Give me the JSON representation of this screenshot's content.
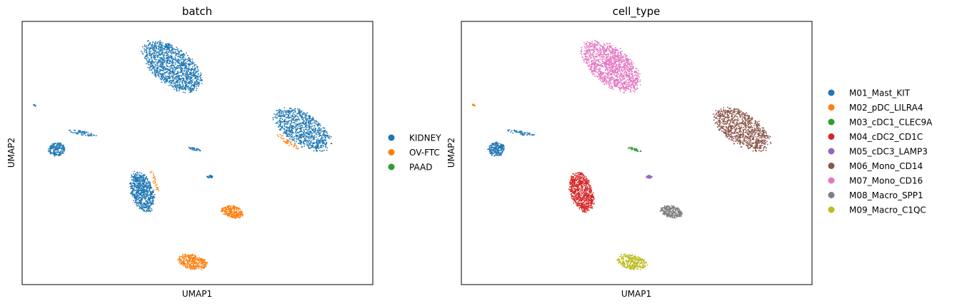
{
  "chart_data": [
    {
      "type": "scatter",
      "title": "batch",
      "xlabel": "UMAP1",
      "ylabel": "UMAP2",
      "grid": false,
      "ticks": false,
      "legend_position": "right",
      "series": [
        {
          "name": "KIDNEY",
          "color": "#1f77b4",
          "clusters": [
            {
              "cx": 3.0,
              "cy": 8.2,
              "rx": 1.4,
              "ry": 0.75,
              "angle": -38,
              "n": 1300
            },
            {
              "cx": 8.2,
              "cy": 5.7,
              "rx": 1.3,
              "ry": 0.65,
              "angle": -32,
              "n": 900
            },
            {
              "cx": 1.8,
              "cy": 3.2,
              "rx": 0.45,
              "ry": 0.85,
              "angle": 18,
              "n": 700
            },
            {
              "cx": -1.6,
              "cy": 4.9,
              "rx": 0.35,
              "ry": 0.28,
              "angle": 0,
              "n": 200
            },
            {
              "cx": -0.6,
              "cy": 5.55,
              "rx": 0.6,
              "ry": 0.09,
              "angle": -10,
              "n": 60
            },
            {
              "cx": 3.9,
              "cy": 4.9,
              "rx": 0.3,
              "ry": 0.05,
              "angle": -15,
              "n": 35
            },
            {
              "cx": 4.5,
              "cy": 3.8,
              "rx": 0.12,
              "ry": 0.06,
              "angle": 0,
              "n": 35
            },
            {
              "cx": -2.5,
              "cy": 6.65,
              "rx": 0.06,
              "ry": 0.03,
              "angle": -30,
              "n": 10
            }
          ]
        },
        {
          "name": "OV-FTC",
          "color": "#ff7f0e",
          "clusters": [
            {
              "cx": 5.4,
              "cy": 2.4,
              "rx": 0.45,
              "ry": 0.25,
              "angle": -10,
              "n": 260
            },
            {
              "cx": 3.8,
              "cy": 0.4,
              "rx": 0.62,
              "ry": 0.3,
              "angle": -12,
              "n": 320
            },
            {
              "cx": 7.6,
              "cy": 5.2,
              "rx": 0.55,
              "ry": 0.1,
              "angle": -35,
              "n": 45
            },
            {
              "cx": 2.3,
              "cy": 3.6,
              "rx": 0.08,
              "ry": 0.5,
              "angle": 20,
              "n": 25
            }
          ]
        },
        {
          "name": "PAAD",
          "color": "#2ca02c",
          "clusters": []
        }
      ],
      "xlim": [
        -3,
        11
      ],
      "ylim": [
        -0.5,
        10
      ]
    },
    {
      "type": "scatter",
      "title": "cell_type",
      "xlabel": "UMAP1",
      "ylabel": "UMAP2",
      "grid": false,
      "ticks": false,
      "legend_position": "right",
      "series": [
        {
          "name": "M01_Mast_KIT",
          "color": "#1f77b4",
          "clusters": [
            {
              "cx": -1.6,
              "cy": 4.9,
              "rx": 0.35,
              "ry": 0.28,
              "angle": 0,
              "n": 200
            },
            {
              "cx": -0.6,
              "cy": 5.55,
              "rx": 0.6,
              "ry": 0.09,
              "angle": -10,
              "n": 60
            }
          ]
        },
        {
          "name": "M02_pDC_LILRA4",
          "color": "#ff7f0e",
          "clusters": [
            {
              "cx": -2.5,
              "cy": 6.65,
              "rx": 0.06,
              "ry": 0.03,
              "angle": -30,
              "n": 12
            }
          ]
        },
        {
          "name": "M03_cDC1_CLEC9A",
          "color": "#2ca02c",
          "clusters": [
            {
              "cx": 3.9,
              "cy": 4.9,
              "rx": 0.3,
              "ry": 0.05,
              "angle": -15,
              "n": 35
            }
          ]
        },
        {
          "name": "M04_cDC2_CD1C",
          "color": "#d62728",
          "clusters": [
            {
              "cx": 1.8,
              "cy": 3.2,
              "rx": 0.45,
              "ry": 0.85,
              "angle": 18,
              "n": 750
            }
          ]
        },
        {
          "name": "M05_cDC3_LAMP3",
          "color": "#9467bd",
          "clusters": [
            {
              "cx": 4.5,
              "cy": 3.8,
              "rx": 0.12,
              "ry": 0.06,
              "angle": 0,
              "n": 35
            }
          ]
        },
        {
          "name": "M06_Mono_CD14",
          "color": "#8c564b",
          "clusters": [
            {
              "cx": 8.2,
              "cy": 5.7,
              "rx": 1.3,
              "ry": 0.65,
              "angle": -32,
              "n": 950
            }
          ]
        },
        {
          "name": "M07_Mono_CD16",
          "color": "#e377c2",
          "clusters": [
            {
              "cx": 3.0,
              "cy": 8.2,
              "rx": 1.4,
              "ry": 0.75,
              "angle": -38,
              "n": 1300
            }
          ]
        },
        {
          "name": "M08_Macro_SPP1",
          "color": "#7f7f7f",
          "clusters": [
            {
              "cx": 5.4,
              "cy": 2.4,
              "rx": 0.45,
              "ry": 0.25,
              "angle": -10,
              "n": 260
            }
          ]
        },
        {
          "name": "M09_Macro_C1QC",
          "color": "#bcbd22",
          "clusters": [
            {
              "cx": 3.8,
              "cy": 0.4,
              "rx": 0.62,
              "ry": 0.3,
              "angle": -12,
              "n": 320
            }
          ]
        }
      ],
      "xlim": [
        -3,
        11
      ],
      "ylim": [
        -0.5,
        10
      ]
    }
  ]
}
